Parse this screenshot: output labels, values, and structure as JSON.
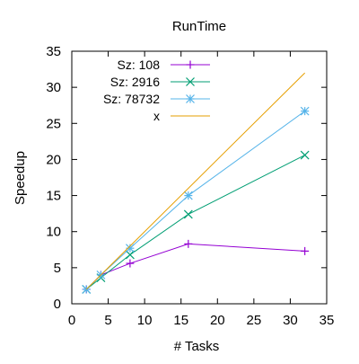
{
  "chart_data": {
    "type": "line",
    "title": "RunTime",
    "xlabel": "# Tasks",
    "ylabel": "Speedup",
    "xlim": [
      0,
      35
    ],
    "ylim": [
      0,
      35
    ],
    "xticks": [
      "0",
      "5",
      "10",
      "15",
      "20",
      "25",
      "30",
      "35"
    ],
    "yticks": [
      "0",
      "5",
      "10",
      "15",
      "20",
      "25",
      "30",
      "35"
    ],
    "grid": false,
    "legend_position": "top-left",
    "series": [
      {
        "name": "Sz: 108",
        "color": "#9400d3",
        "marker": "plus",
        "x": [
          2,
          4,
          8,
          16,
          32
        ],
        "y": [
          2,
          4,
          5.6,
          8.3,
          7.3
        ]
      },
      {
        "name": "Sz: 2916",
        "color": "#009e73",
        "marker": "cross",
        "x": [
          2,
          4,
          8,
          16,
          32
        ],
        "y": [
          2,
          3.6,
          6.8,
          12.4,
          20.6
        ]
      },
      {
        "name": "Sz: 78732",
        "color": "#56b4e9",
        "marker": "star",
        "x": [
          2,
          4,
          8,
          16,
          32
        ],
        "y": [
          2,
          4,
          7.7,
          15,
          26.7
        ]
      },
      {
        "name": "x",
        "color": "#e69f00",
        "marker": "none",
        "x": [
          2,
          32
        ],
        "y": [
          2,
          32
        ]
      }
    ]
  }
}
